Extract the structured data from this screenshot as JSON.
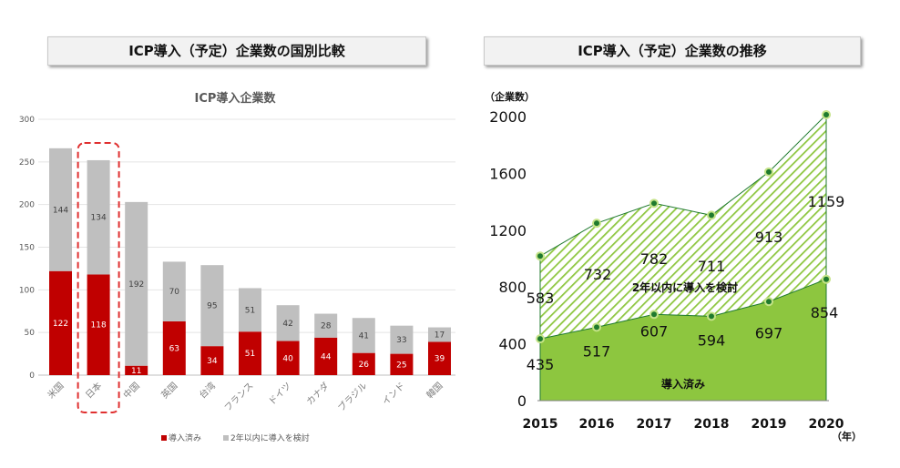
{
  "titles": {
    "left": "ICP導入（予定）企業数の国別比較",
    "right": "ICP導入（予定）企業数の推移"
  },
  "colors": {
    "red": "#c00000",
    "gray": "#bfbfbf",
    "green_light": "#8dc63f",
    "green_dark": "#1f7a2e",
    "dot_outer": "#c5e388"
  },
  "chart_data": [
    {
      "type": "bar",
      "stacked": true,
      "title": "ICP導入企業数",
      "categories": [
        "米国",
        "日本",
        "中国",
        "英国",
        "台湾",
        "フランス",
        "ドイツ",
        "カナダ",
        "ブラジル",
        "インド",
        "韓国"
      ],
      "series": [
        {
          "name": "導入済み",
          "values": [
            122,
            118,
            11,
            63,
            34,
            51,
            40,
            44,
            26,
            25,
            39
          ]
        },
        {
          "name": "2年以内に導入を検討",
          "values": [
            144,
            134,
            192,
            70,
            95,
            51,
            42,
            28,
            41,
            33,
            17
          ]
        }
      ],
      "yticks": [
        0,
        50,
        100,
        150,
        200,
        250,
        300
      ],
      "ylim": [
        0,
        300
      ],
      "highlight": "日本",
      "legend": "bottom"
    },
    {
      "type": "area",
      "stacked": true,
      "x": [
        2015,
        2016,
        2017,
        2018,
        2019,
        2020
      ],
      "series": [
        {
          "name": "導入済み",
          "values": [
            435,
            517,
            607,
            594,
            697,
            854
          ]
        },
        {
          "name": "2年以内に導入を検討",
          "values": [
            583,
            732,
            782,
            711,
            913,
            1159
          ]
        }
      ],
      "yticks": [
        0,
        400,
        800,
        1200,
        1600,
        2000
      ],
      "ylim": [
        0,
        2000
      ],
      "ylabel": "（企業数）",
      "xlabel": "（年）"
    }
  ]
}
